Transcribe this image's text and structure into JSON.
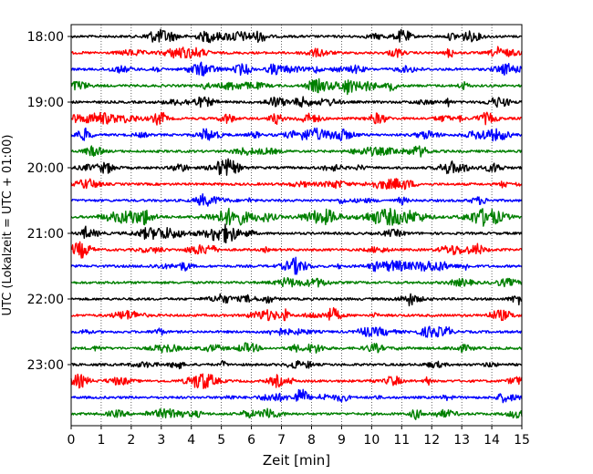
{
  "chart_data": {
    "type": "line",
    "title": "",
    "xlabel": "Zeit  [min]",
    "ylabel": "UTC (Lokalzeit = UTC + 01:00)",
    "xlim": [
      0,
      15
    ],
    "x_ticks": [
      "0",
      "1",
      "2",
      "3",
      "4",
      "5",
      "6",
      "7",
      "8",
      "9",
      "10",
      "11",
      "12",
      "13",
      "14",
      "15"
    ],
    "y_ticks": [
      "18:00",
      "19:00",
      "20:00",
      "21:00",
      "22:00",
      "23:00"
    ],
    "grid": "vertical-dotted",
    "trace_colors": [
      "#000000",
      "#ff0000",
      "#0000ff",
      "#008000"
    ],
    "traces": [
      {
        "start": "18:00",
        "color": "#000000"
      },
      {
        "start": "18:15",
        "color": "#ff0000"
      },
      {
        "start": "18:30",
        "color": "#0000ff"
      },
      {
        "start": "18:45",
        "color": "#008000"
      },
      {
        "start": "19:00",
        "color": "#000000"
      },
      {
        "start": "19:15",
        "color": "#ff0000"
      },
      {
        "start": "19:30",
        "color": "#0000ff"
      },
      {
        "start": "19:45",
        "color": "#008000"
      },
      {
        "start": "20:00",
        "color": "#000000"
      },
      {
        "start": "20:15",
        "color": "#ff0000"
      },
      {
        "start": "20:30",
        "color": "#0000ff"
      },
      {
        "start": "20:45",
        "color": "#008000"
      },
      {
        "start": "21:00",
        "color": "#000000"
      },
      {
        "start": "21:15",
        "color": "#ff0000"
      },
      {
        "start": "21:30",
        "color": "#0000ff"
      },
      {
        "start": "21:45",
        "color": "#008000"
      },
      {
        "start": "22:00",
        "color": "#000000"
      },
      {
        "start": "22:15",
        "color": "#ff0000"
      },
      {
        "start": "22:30",
        "color": "#0000ff"
      },
      {
        "start": "22:45",
        "color": "#008000"
      },
      {
        "start": "23:00",
        "color": "#000000"
      },
      {
        "start": "23:15",
        "color": "#ff0000"
      },
      {
        "start": "23:30",
        "color": "#0000ff"
      },
      {
        "start": "23:45",
        "color": "#008000"
      }
    ]
  }
}
